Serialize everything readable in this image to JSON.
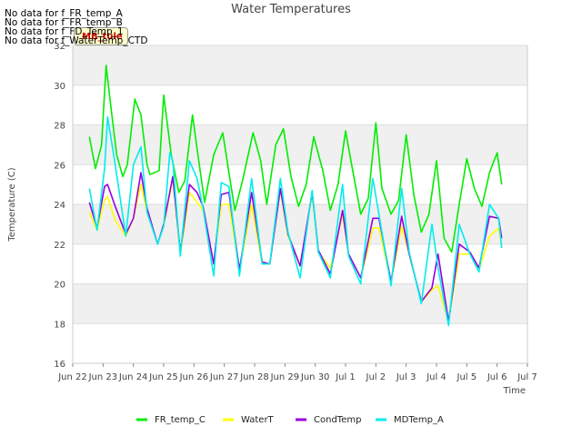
{
  "chart_data": {
    "type": "line",
    "title": "Water Temperatures",
    "xlabel": "Time",
    "ylabel": "Temperature (C)",
    "ylim": [
      16,
      32
    ],
    "yticks": [
      16,
      18,
      20,
      22,
      24,
      26,
      28,
      30,
      32
    ],
    "xlim": [
      0,
      15
    ],
    "xticks": [
      0,
      1,
      2,
      3,
      4,
      5,
      6,
      7,
      8,
      9,
      10,
      11,
      12,
      13,
      14,
      15
    ],
    "xtick_labels": [
      "Jun 22",
      "Jun 23",
      "Jun 24",
      "Jun 25",
      "Jun 26",
      "Jun 27",
      "Jun 28",
      "Jun 29",
      "Jun 30",
      "Jul 1",
      "Jul 2",
      "Jul 3",
      "Jul 4",
      "Jul 5",
      "Jul 6",
      "Jul 7"
    ],
    "grid": true,
    "legend_position": "bottom",
    "no_data_messages": [
      "No data for f_FR_temp_A",
      "No data for f_FR_temp_B",
      "No data for f_FD_Temp_1",
      "No data for f_WaterTemp_CTD"
    ],
    "tag_label": "MB_tule",
    "series": [
      {
        "name": "FR_temp_C",
        "color": "#00ee00",
        "x": [
          0.55,
          0.75,
          0.95,
          1.1,
          1.25,
          1.45,
          1.65,
          1.8,
          2.05,
          2.25,
          2.45,
          2.55,
          2.85,
          3.0,
          3.25,
          3.5,
          3.7,
          3.95,
          4.1,
          4.35,
          4.65,
          4.95,
          5.15,
          5.35,
          5.6,
          5.95,
          6.2,
          6.4,
          6.7,
          6.95,
          7.2,
          7.45,
          7.7,
          7.95,
          8.25,
          8.5,
          8.75,
          9.0,
          9.2,
          9.5,
          9.75,
          10.0,
          10.2,
          10.5,
          10.75,
          11.0,
          11.25,
          11.5,
          11.75,
          12.0,
          12.25,
          12.5,
          12.75,
          13.0,
          13.25,
          13.5,
          13.75,
          14.0,
          14.15
        ],
        "y": [
          27.4,
          25.8,
          27.0,
          31.0,
          29.0,
          26.5,
          25.4,
          26.0,
          29.3,
          28.5,
          26.0,
          25.5,
          25.7,
          29.5,
          26.5,
          24.6,
          25.2,
          28.5,
          26.8,
          24.1,
          26.5,
          27.6,
          25.6,
          23.7,
          25.2,
          27.6,
          26.2,
          24.0,
          27.0,
          27.8,
          25.4,
          23.9,
          25.0,
          27.4,
          25.7,
          23.7,
          25.0,
          27.7,
          26.0,
          23.5,
          24.3,
          28.1,
          24.8,
          23.5,
          24.2,
          27.5,
          24.5,
          22.6,
          23.5,
          26.2,
          22.3,
          21.6,
          24.0,
          26.3,
          24.8,
          23.9,
          25.6,
          26.6,
          25.0
        ]
      },
      {
        "name": "WaterT",
        "color": "#ffff00",
        "x": [
          0.55,
          0.8,
          1.05,
          1.15,
          1.4,
          1.75,
          2.0,
          2.25,
          2.45,
          2.8,
          3.0,
          3.3,
          3.55,
          3.85,
          4.1,
          4.3,
          4.65,
          4.9,
          5.15,
          5.5,
          5.9,
          6.25,
          6.5,
          6.85,
          7.1,
          7.5,
          7.9,
          8.1,
          8.5,
          8.9,
          9.1,
          9.5,
          9.9,
          10.1,
          10.5,
          10.85,
          11.1,
          11.5,
          11.85,
          12.05,
          12.4,
          12.75,
          13.1,
          13.4,
          13.75,
          14.05,
          14.15
        ],
        "y": [
          23.6,
          22.7,
          24.2,
          24.4,
          23.2,
          22.4,
          23.3,
          25.0,
          23.6,
          22.0,
          22.9,
          25.3,
          21.5,
          24.6,
          24.1,
          23.7,
          21.0,
          24.0,
          24.0,
          20.7,
          24.0,
          21.0,
          21.0,
          24.7,
          22.4,
          20.9,
          24.5,
          21.6,
          20.8,
          23.5,
          21.5,
          20.3,
          22.8,
          22.8,
          20.1,
          22.9,
          21.5,
          19.1,
          19.7,
          19.9,
          18.1,
          21.5,
          21.5,
          20.7,
          22.4,
          22.8,
          21.9
        ]
      },
      {
        "name": "CondTemp",
        "color": "#9900dd",
        "x": [
          0.55,
          0.8,
          1.05,
          1.15,
          1.4,
          1.75,
          2.0,
          2.25,
          2.45,
          2.8,
          3.0,
          3.3,
          3.55,
          3.85,
          4.1,
          4.3,
          4.65,
          4.9,
          5.15,
          5.5,
          5.9,
          6.25,
          6.5,
          6.85,
          7.1,
          7.5,
          7.9,
          8.1,
          8.5,
          8.9,
          9.1,
          9.5,
          9.9,
          10.1,
          10.5,
          10.85,
          11.1,
          11.5,
          11.85,
          12.05,
          12.4,
          12.75,
          13.1,
          13.4,
          13.75,
          14.05,
          14.15
        ],
        "y": [
          24.1,
          22.8,
          24.9,
          25.0,
          23.9,
          22.5,
          23.3,
          25.6,
          23.8,
          22.0,
          23.0,
          25.4,
          21.6,
          25.0,
          24.6,
          23.9,
          21.0,
          24.5,
          24.6,
          20.7,
          24.6,
          21.1,
          21.0,
          24.8,
          22.5,
          20.9,
          24.6,
          21.7,
          20.5,
          23.7,
          21.5,
          20.3,
          23.3,
          23.3,
          20.1,
          23.4,
          21.5,
          19.1,
          19.8,
          21.5,
          18.1,
          22.0,
          21.6,
          20.8,
          23.4,
          23.3,
          22.3
        ]
      },
      {
        "name": "MDTemp_A",
        "color": "#00eeee",
        "x": [
          0.55,
          0.8,
          1.05,
          1.15,
          1.4,
          1.75,
          2.0,
          2.25,
          2.45,
          2.8,
          3.0,
          3.2,
          3.3,
          3.55,
          3.85,
          4.1,
          4.3,
          4.65,
          4.9,
          5.15,
          5.5,
          5.9,
          6.25,
          6.5,
          6.85,
          7.1,
          7.5,
          7.9,
          8.1,
          8.5,
          8.9,
          9.1,
          9.5,
          9.9,
          10.1,
          10.5,
          10.85,
          11.1,
          11.5,
          11.85,
          12.05,
          12.4,
          12.75,
          13.1,
          13.4,
          13.75,
          14.05,
          14.15
        ],
        "y": [
          24.8,
          22.7,
          25.8,
          28.4,
          26.0,
          22.4,
          26.0,
          26.9,
          23.6,
          22.0,
          22.9,
          26.6,
          26.2,
          21.4,
          26.2,
          25.3,
          23.8,
          20.4,
          25.1,
          24.9,
          20.4,
          25.3,
          21.0,
          21.0,
          25.3,
          22.6,
          20.3,
          24.7,
          21.6,
          20.3,
          25.0,
          21.4,
          20.0,
          25.3,
          23.5,
          19.9,
          24.8,
          21.6,
          19.0,
          23.0,
          20.8,
          17.9,
          23.0,
          21.5,
          20.6,
          24.0,
          23.3,
          21.8
        ]
      }
    ]
  }
}
